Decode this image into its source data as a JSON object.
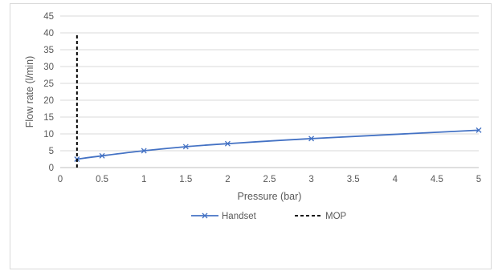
{
  "chart_data": {
    "type": "line",
    "title": "",
    "xlabel": "Pressure (bar)",
    "ylabel": "Flow rate (l/min)",
    "xlim": [
      0,
      5
    ],
    "ylim": [
      0,
      45
    ],
    "x_ticks": [
      "0",
      "0.5",
      "1",
      "1.5",
      "2",
      "2.5",
      "3",
      "3.5",
      "4",
      "4.5",
      "5"
    ],
    "y_ticks": [
      "0",
      "5",
      "10",
      "15",
      "20",
      "25",
      "30",
      "35",
      "40",
      "45"
    ],
    "grid": true,
    "legend_position": "bottom",
    "series": [
      {
        "name": "Handset",
        "color": "#4472c4",
        "marker": "x",
        "points": [
          {
            "x": 0.2,
            "y": 2.5
          },
          {
            "x": 0.5,
            "y": 3.5
          },
          {
            "x": 1,
            "y": 5.0
          },
          {
            "x": 1.5,
            "y": 6.2
          },
          {
            "x": 2,
            "y": 7.1
          },
          {
            "x": 3,
            "y": 8.6
          },
          {
            "x": 5,
            "y": 11.1
          }
        ]
      },
      {
        "name": "MOP",
        "color": "#000000",
        "style": "dashed",
        "points": [
          {
            "x": 0.2,
            "y": 0
          },
          {
            "x": 0.2,
            "y": 40
          }
        ]
      }
    ]
  }
}
